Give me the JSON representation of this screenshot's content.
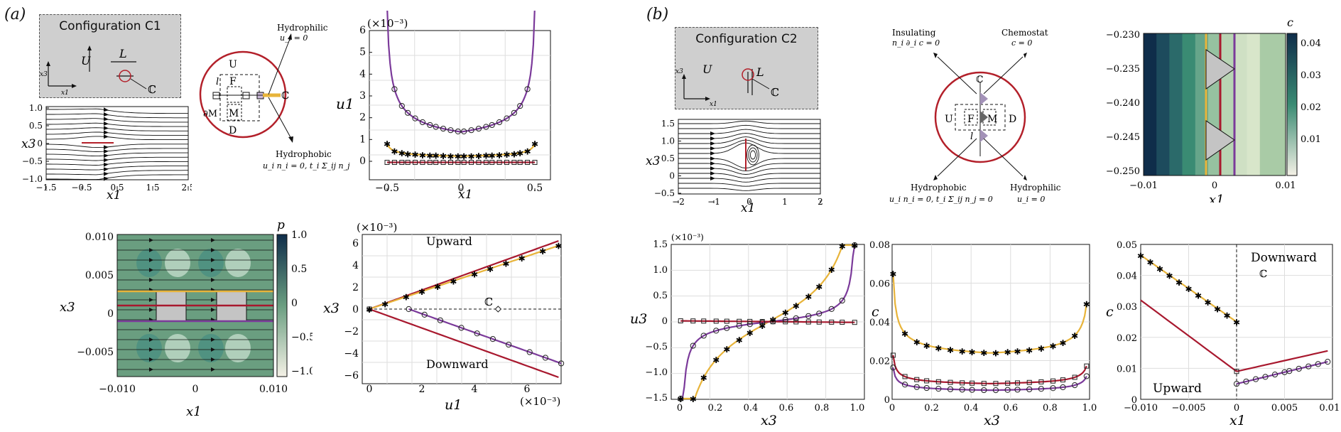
{
  "panels": {
    "a": {
      "letter": "(a)",
      "config_title": "Configuration C1",
      "config_labels": {
        "U": "U",
        "L": "L",
        "C": "ℂ",
        "x3": "x3",
        "x1": "x1"
      },
      "inset": {
        "U": "U",
        "F": "F",
        "M": "M",
        "dM": "∂M",
        "D": "D",
        "l": "l",
        "C": "ℂ",
        "hydrophilic": "Hydrophilic",
        "hydrophilic_eq": "u_i = 0",
        "hydrophobic": "Hydrophobic",
        "hydrophobic_eq": "u_i n_i = 0, t_i Σ_ij n_j = 0"
      },
      "streamlines": {
        "xlabel": "x1",
        "ylabel": "x3",
        "xticks": [
          "−1.5",
          "−0.5",
          "0.5",
          "1.5",
          "2.5"
        ],
        "yticks": [
          "1.0",
          "0.5",
          "0",
          "−0.5",
          "−1.0"
        ]
      },
      "u1_plot": {
        "ylabel": "u1",
        "xlabel": "x1",
        "scale": "(×10⁻³)",
        "xticks": [
          "−0.5",
          "0",
          "0.5"
        ],
        "yticks": [
          "0",
          "1",
          "2",
          "3",
          "4",
          "5",
          "6"
        ]
      },
      "pressure_map": {
        "xlabel": "x1",
        "ylabel": "x3",
        "cbar_label": "p",
        "xticks": [
          "−0.010",
          "0",
          "0.010"
        ],
        "yticks": [
          "0.010",
          "0.005",
          "0",
          "−0.005"
        ],
        "cbar_ticks": [
          "1.0",
          "0.5",
          "0",
          "−0.5",
          "−1.0"
        ]
      },
      "x3u1_plot": {
        "ylabel": "x3",
        "xlabel": "u1",
        "scale_x": "(×10⁻³)",
        "scale_y": "(×10⁻³)",
        "upward": "Upward",
        "downward": "Downward",
        "C": "ℂ",
        "xticks": [
          "0",
          "2",
          "4",
          "6"
        ],
        "yticks": [
          "6",
          "4",
          "2",
          "0",
          "−2",
          "−4",
          "−6"
        ]
      }
    },
    "b": {
      "letter": "(b)",
      "config_title": "Configuration C2",
      "config_labels": {
        "U": "U",
        "L": "L",
        "C": "ℂ",
        "x3": "x3",
        "x1": "x1"
      },
      "inset": {
        "U": "U",
        "F": "F",
        "M": "M",
        "D": "D",
        "l": "l",
        "C": "ℂ",
        "insulating": "Insulating",
        "insulating_eq": "n_i ∂_i c = 0",
        "chemostat": "Chemostat",
        "chemostat_eq": "c = 0",
        "hydrophobic": "Hydrophobic",
        "hydrophobic_eq": "u_i n_i = 0, t_i Σ_ij n_j = 0",
        "hydrophilic": "Hydrophilic",
        "hydrophilic_eq": "u_i = 0"
      },
      "streamlines": {
        "xlabel": "x1",
        "ylabel": "x3",
        "xticks": [
          "−2",
          "−1",
          "0",
          "1",
          "2"
        ],
        "yticks": [
          "1.5",
          "1.0",
          "0.5",
          "0",
          "−0.5"
        ]
      },
      "conc_map": {
        "xlabel": "x1",
        "cbar_label": "c",
        "xticks": [
          "−0.01",
          "0",
          "0.01"
        ],
        "yticks": [
          "−0.230",
          "−0.235",
          "−0.240",
          "−0.245",
          "−0.250"
        ],
        "cbar_ticks": [
          "0.04",
          "0.03",
          "0.02",
          "0.01"
        ]
      },
      "u3_plot": {
        "ylabel": "u3",
        "xlabel": "x3",
        "scale": "(×10⁻³)",
        "xticks": [
          "0",
          "0.2",
          "0.4",
          "0.6",
          "0.8",
          "1.0"
        ],
        "yticks": [
          "1.5",
          "1.0",
          "0.5",
          "0",
          "−0.5",
          "−1.0",
          "−1.5"
        ]
      },
      "c_plot": {
        "ylabel": "c",
        "xlabel": "x3",
        "xticks": [
          "0",
          "0.2",
          "0.4",
          "0.6",
          "0.8",
          "1.0"
        ],
        "yticks": [
          "0.08",
          "0.06",
          "0.04",
          "0.02",
          "0"
        ]
      },
      "cx1_plot": {
        "ylabel": "c",
        "xlabel": "x1",
        "upward": "Upward",
        "downward": "Downward",
        "C": "ℂ",
        "xticks": [
          "−0.010",
          "−0.005",
          "0",
          "0.005",
          "0.010"
        ],
        "yticks": [
          "0.05",
          "0.04",
          "0.03",
          "0.02",
          "0.01",
          "0"
        ]
      }
    }
  },
  "colors": {
    "purple": "#7b3a9a",
    "yellow": "#e8b43a",
    "red": "#a8182e",
    "green": "#6a9e80",
    "dark": "#0f2d4a"
  }
}
